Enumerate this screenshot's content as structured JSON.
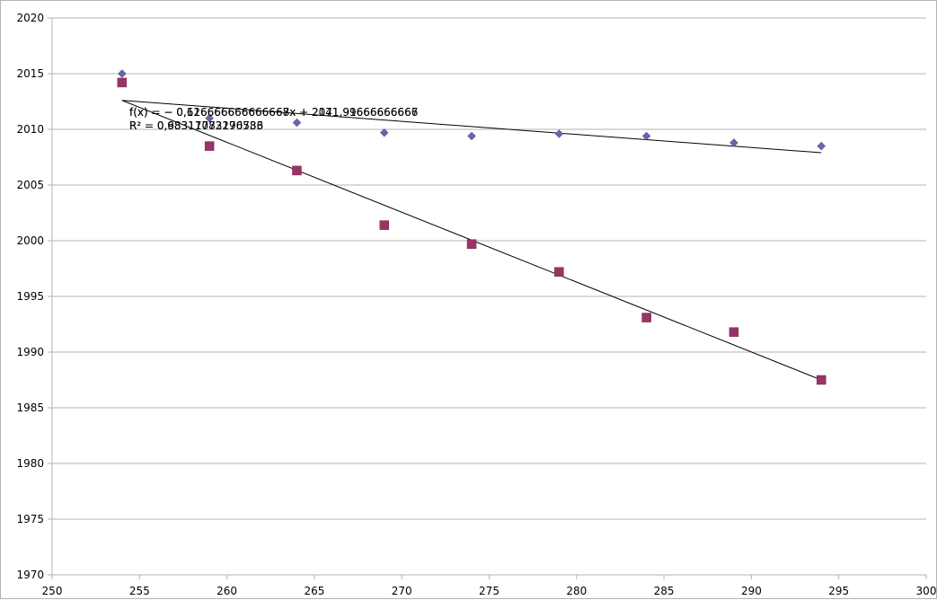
{
  "chart_data": {
    "type": "scatter",
    "title": "",
    "xlabel": "",
    "ylabel": "",
    "xlim": [
      250,
      300
    ],
    "ylim": [
      1970,
      2020
    ],
    "x_ticks": [
      "250",
      "255",
      "260",
      "265",
      "270",
      "275",
      "280",
      "285",
      "290",
      "295",
      "300"
    ],
    "y_ticks": [
      "1970",
      "1975",
      "1980",
      "1985",
      "1990",
      "1995",
      "2000",
      "2005",
      "2010",
      "2015",
      "2020"
    ],
    "grid": "horizontal",
    "legend": "none",
    "series": [
      {
        "marker": "diamond",
        "color": "#6666aa",
        "points": [
          [
            254,
            2015.0
          ],
          [
            259,
            2011.0
          ],
          [
            264,
            2010.6
          ],
          [
            269,
            2009.7
          ],
          [
            274,
            2009.4
          ],
          [
            279,
            2009.6
          ],
          [
            284,
            2009.4
          ],
          [
            289,
            2008.8
          ],
          [
            294,
            2008.5
          ]
        ],
        "trendline": {
          "from": [
            254,
            2012.6
          ],
          "to": [
            294,
            2007.9
          ]
        }
      },
      {
        "marker": "square",
        "color": "#993366",
        "points": [
          [
            254,
            2014.2
          ],
          [
            259,
            2008.5
          ],
          [
            264,
            2006.3
          ],
          [
            269,
            2001.4
          ],
          [
            274,
            1999.7
          ],
          [
            279,
            1997.2
          ],
          [
            284,
            1993.1
          ],
          [
            289,
            1991.8
          ],
          [
            294,
            1987.5
          ]
        ],
        "trendline": {
          "from": [
            254,
            2012.6
          ],
          "to": [
            294,
            1987.5
          ]
        }
      }
    ],
    "annotations": {
      "eq1": "f(x) = − 0,116666666666668x + 2041,91666666666",
      "eq2": "f(x) = − 0,626666666666667x + 2171,99666666667",
      "r2_1": "R² = 0,68317073170733",
      "r2_2": "R² = 0,98311782296586"
    }
  }
}
